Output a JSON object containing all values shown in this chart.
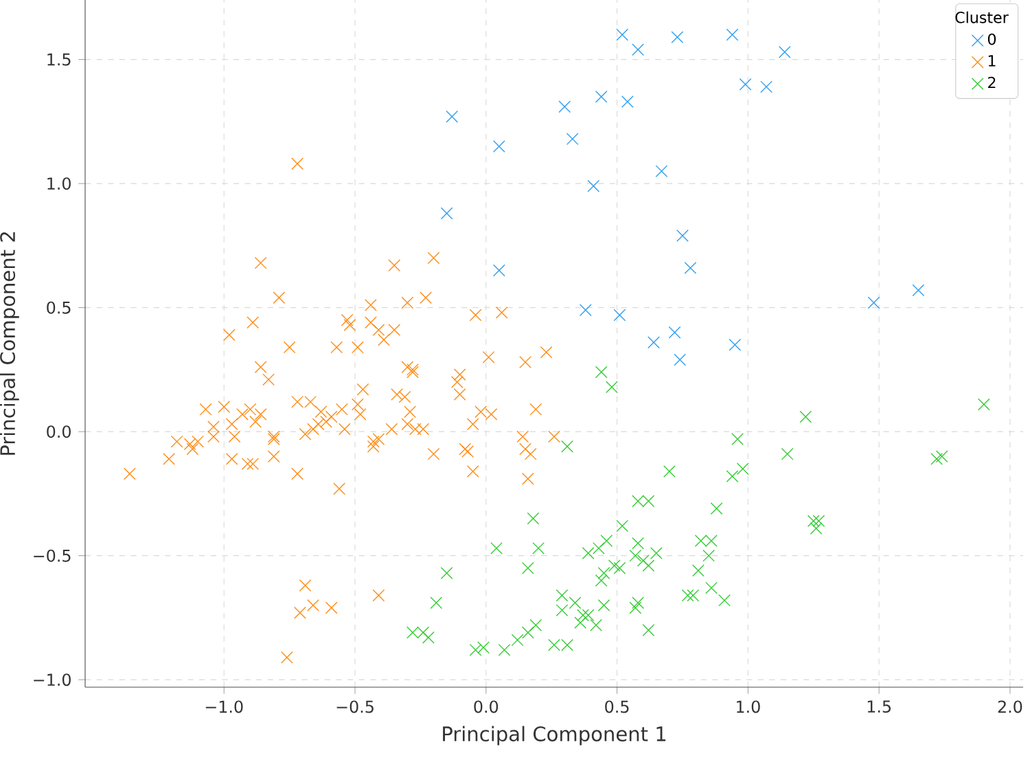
{
  "chart_data": {
    "type": "scatter",
    "xlabel": "Principal Component 1",
    "ylabel": "Principal Component 2",
    "legend_title": "Cluster",
    "xlim": [
      -1.53,
      2.05
    ],
    "ylim": [
      -1.03,
      1.74
    ],
    "xticks": [
      {
        "value": -1.0,
        "label": "−1.0"
      },
      {
        "value": -0.5,
        "label": "−0.5"
      },
      {
        "value": 0.0,
        "label": "0.0"
      },
      {
        "value": 0.5,
        "label": "0.5"
      },
      {
        "value": 1.0,
        "label": "1.0"
      },
      {
        "value": 1.5,
        "label": "1.5"
      },
      {
        "value": 2.0,
        "label": "2.0"
      }
    ],
    "yticks": [
      {
        "value": -1.0,
        "label": "−1.0"
      },
      {
        "value": -0.5,
        "label": "−0.5"
      },
      {
        "value": 0.0,
        "label": "0.0"
      },
      {
        "value": 0.5,
        "label": "0.5"
      },
      {
        "value": 1.0,
        "label": "1.0"
      },
      {
        "value": 1.5,
        "label": "1.5"
      }
    ],
    "grid": true,
    "legend": "top right",
    "marker": "cross",
    "series": [
      {
        "name": "0",
        "color": "#2e9ef0",
        "x": [
          0.52,
          0.58,
          0.73,
          0.94,
          1.14,
          0.99,
          1.07,
          0.3,
          0.44,
          0.54,
          -0.13,
          0.33,
          0.05,
          0.41,
          0.67,
          0.75,
          -0.15,
          0.05,
          0.78,
          0.38,
          0.51,
          1.48,
          1.65,
          0.64,
          0.72,
          0.74,
          0.95
        ],
        "values": [
          1.6,
          1.54,
          1.59,
          1.6,
          1.53,
          1.4,
          1.39,
          1.31,
          1.35,
          1.33,
          1.27,
          1.18,
          1.15,
          0.99,
          1.05,
          0.79,
          0.88,
          0.65,
          0.66,
          0.49,
          0.47,
          0.52,
          0.57,
          0.36,
          0.4,
          0.29,
          0.35
        ]
      },
      {
        "name": "1",
        "color": "#ff8a12",
        "x": [
          -0.72,
          -0.86,
          -0.35,
          -0.79,
          -0.3,
          -0.89,
          -0.53,
          -0.52,
          -0.44,
          -0.44,
          -0.41,
          -0.39,
          -0.35,
          -0.98,
          -0.75,
          -0.57,
          -0.49,
          -0.86,
          -0.83,
          -0.3,
          -0.28,
          -0.34,
          -0.31,
          -0.47,
          -0.72,
          -0.67,
          -1.07,
          -1.0,
          -0.9,
          -0.86,
          -0.93,
          -1.04,
          -0.97,
          -0.63,
          -0.59,
          -0.55,
          -0.49,
          -0.48,
          -0.29,
          -0.3,
          -0.27,
          -0.69,
          -0.66,
          -0.64,
          -0.61,
          -0.54,
          -0.81,
          -0.81,
          -0.88,
          -1.04,
          -0.96,
          -0.43,
          -0.41,
          -0.36,
          -1.12,
          -1.13,
          -1.1,
          -1.18,
          -1.21,
          -0.97,
          -0.91,
          -0.89,
          -0.81,
          -0.43,
          -1.36,
          -0.72,
          -0.56,
          -0.69,
          -0.66,
          -0.71,
          -0.59,
          -0.41,
          -0.76,
          -0.2,
          -0.23,
          -0.04,
          0.06,
          0.01,
          0.15,
          0.23,
          -0.28,
          -0.1,
          -0.1,
          -0.11,
          -0.24,
          -0.02,
          0.02,
          -0.05,
          0.19,
          0.26,
          0.14,
          0.15,
          0.17,
          -0.2,
          -0.08,
          -0.07,
          -0.05,
          0.16
        ],
        "values": [
          1.08,
          0.68,
          0.67,
          0.54,
          0.52,
          0.44,
          0.45,
          0.43,
          0.51,
          0.44,
          0.41,
          0.37,
          0.41,
          0.39,
          0.34,
          0.34,
          0.34,
          0.26,
          0.21,
          0.26,
          0.25,
          0.15,
          0.14,
          0.17,
          0.12,
          0.12,
          0.09,
          0.1,
          0.09,
          0.07,
          0.07,
          0.02,
          0.03,
          0.08,
          0.06,
          0.09,
          0.11,
          0.07,
          0.08,
          0.03,
          0.01,
          -0.01,
          0.01,
          0.03,
          0.04,
          0.01,
          -0.02,
          -0.03,
          0.04,
          -0.02,
          -0.02,
          -0.04,
          -0.03,
          0.01,
          -0.07,
          -0.05,
          -0.04,
          -0.04,
          -0.11,
          -0.11,
          -0.13,
          -0.13,
          -0.1,
          -0.06,
          -0.17,
          -0.17,
          -0.23,
          -0.62,
          -0.7,
          -0.73,
          -0.71,
          -0.66,
          -0.91,
          0.7,
          0.54,
          0.47,
          0.48,
          0.3,
          0.28,
          0.32,
          0.24,
          0.23,
          0.15,
          0.2,
          0.01,
          0.08,
          0.07,
          0.03,
          0.09,
          -0.02,
          -0.02,
          -0.07,
          -0.09,
          -0.09,
          -0.07,
          -0.08,
          -0.16,
          -0.19
        ]
      },
      {
        "name": "2",
        "color": "#33cc33",
        "x": [
          0.44,
          0.48,
          0.31,
          0.7,
          0.58,
          0.62,
          0.88,
          0.18,
          0.52,
          0.82,
          0.86,
          0.04,
          0.2,
          0.46,
          0.39,
          0.43,
          0.58,
          0.65,
          0.85,
          0.57,
          0.6,
          0.49,
          0.51,
          0.45,
          0.62,
          0.16,
          0.81,
          -0.15,
          0.44,
          0.77,
          0.79,
          0.86,
          0.91,
          0.29,
          0.34,
          0.29,
          -0.19,
          0.57,
          0.58,
          0.45,
          0.37,
          0.39,
          0.42,
          0.36,
          0.62,
          0.19,
          0.16,
          0.12,
          0.07,
          -0.04,
          -0.01,
          0.26,
          0.31,
          -0.28,
          -0.24,
          -0.22,
          0.96,
          1.15,
          1.22,
          1.9,
          1.72,
          1.74,
          0.94,
          0.98,
          1.25,
          1.27,
          1.26
        ],
        "values": [
          0.24,
          0.18,
          -0.06,
          -0.16,
          -0.28,
          -0.28,
          -0.31,
          -0.35,
          -0.38,
          -0.44,
          -0.44,
          -0.47,
          -0.47,
          -0.44,
          -0.49,
          -0.47,
          -0.45,
          -0.49,
          -0.5,
          -0.5,
          -0.52,
          -0.54,
          -0.55,
          -0.57,
          -0.54,
          -0.55,
          -0.56,
          -0.57,
          -0.6,
          -0.66,
          -0.66,
          -0.63,
          -0.68,
          -0.66,
          -0.69,
          -0.72,
          -0.69,
          -0.71,
          -0.69,
          -0.7,
          -0.74,
          -0.74,
          -0.78,
          -0.77,
          -0.8,
          -0.78,
          -0.81,
          -0.84,
          -0.88,
          -0.88,
          -0.87,
          -0.86,
          -0.86,
          -0.81,
          -0.81,
          -0.83,
          -0.03,
          -0.09,
          0.06,
          0.11,
          -0.11,
          -0.1,
          -0.18,
          -0.15,
          -0.36,
          -0.36,
          -0.39
        ]
      }
    ]
  }
}
